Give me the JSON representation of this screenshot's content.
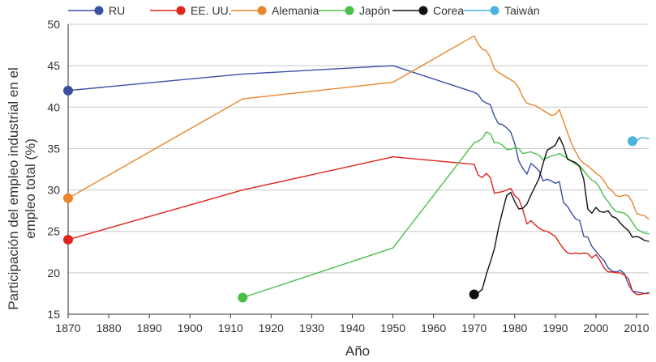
{
  "chart_data": {
    "type": "line",
    "title": "",
    "xlabel": "Año",
    "ylabel": "Participación del empleo industrial en el empleo total (%)",
    "ylabel_lines": [
      "Participación del empleo industrial en el",
      "empleo total (%)"
    ],
    "xlim": [
      1870,
      2013
    ],
    "ylim": [
      15,
      50
    ],
    "x_ticks": [
      1870,
      1880,
      1890,
      1900,
      1910,
      1920,
      1930,
      1940,
      1950,
      1960,
      1970,
      1980,
      1990,
      2000,
      2010
    ],
    "y_ticks": [
      15,
      20,
      25,
      30,
      35,
      40,
      45,
      50
    ],
    "grid": true,
    "legend_position": "top",
    "series": [
      {
        "name": "RU",
        "color": "#3b4fa0",
        "start_marker": true,
        "points": [
          [
            1870,
            42
          ],
          [
            1913,
            44
          ],
          [
            1950,
            45
          ],
          [
            1970,
            41.8
          ],
          [
            1971,
            41.5
          ],
          [
            1972,
            40.8
          ],
          [
            1973,
            40.5
          ],
          [
            1974,
            40.3
          ],
          [
            1975,
            38.9
          ],
          [
            1976,
            38
          ],
          [
            1977,
            37.9
          ],
          [
            1978,
            37.5
          ],
          [
            1979,
            37
          ],
          [
            1980,
            35.6
          ],
          [
            1981,
            33.5
          ],
          [
            1982,
            32.6
          ],
          [
            1983,
            31.9
          ],
          [
            1984,
            33.2
          ],
          [
            1985,
            32.8
          ],
          [
            1986,
            32.3
          ],
          [
            1987,
            31.1
          ],
          [
            1988,
            31.3
          ],
          [
            1989,
            31.1
          ],
          [
            1990,
            30.8
          ],
          [
            1991,
            31
          ],
          [
            1992,
            28.5
          ],
          [
            1993,
            28
          ],
          [
            1994,
            27.2
          ],
          [
            1995,
            26.5
          ],
          [
            1996,
            26.3
          ],
          [
            1997,
            24.4
          ],
          [
            1998,
            24.3
          ],
          [
            1999,
            23.2
          ],
          [
            2000,
            22.6
          ],
          [
            2001,
            22
          ],
          [
            2002,
            21.5
          ],
          [
            2003,
            20.6
          ],
          [
            2004,
            20.2
          ],
          [
            2005,
            20.1
          ],
          [
            2006,
            20.3
          ],
          [
            2007,
            19.9
          ],
          [
            2008,
            18.6
          ],
          [
            2009,
            17.8
          ],
          [
            2010,
            17.7
          ],
          [
            2011,
            17.6
          ],
          [
            2012,
            17.5
          ],
          [
            2013,
            17.6
          ]
        ]
      },
      {
        "name": "EE. UU.",
        "color": "#e0231b",
        "start_marker": true,
        "points": [
          [
            1870,
            24
          ],
          [
            1913,
            30
          ],
          [
            1950,
            34
          ],
          [
            1970,
            33.1
          ],
          [
            1971,
            31.8
          ],
          [
            1972,
            31.5
          ],
          [
            1973,
            32
          ],
          [
            1974,
            31.5
          ],
          [
            1975,
            29.6
          ],
          [
            1976,
            29.7
          ],
          [
            1977,
            29.8
          ],
          [
            1978,
            30
          ],
          [
            1979,
            30.2
          ],
          [
            1980,
            29.3
          ],
          [
            1981,
            28.9
          ],
          [
            1982,
            27.6
          ],
          [
            1983,
            25.9
          ],
          [
            1984,
            26.3
          ],
          [
            1985,
            25.8
          ],
          [
            1986,
            25.4
          ],
          [
            1987,
            25.1
          ],
          [
            1988,
            25
          ],
          [
            1989,
            24.7
          ],
          [
            1990,
            24.4
          ],
          [
            1991,
            23.6
          ],
          [
            1992,
            22.9
          ],
          [
            1993,
            22.4
          ],
          [
            1994,
            22.3
          ],
          [
            1995,
            22.4
          ],
          [
            1996,
            22.3
          ],
          [
            1997,
            22.4
          ],
          [
            1998,
            22.3
          ],
          [
            1999,
            21.8
          ],
          [
            2000,
            22.2
          ],
          [
            2001,
            21.5
          ],
          [
            2002,
            20.6
          ],
          [
            2003,
            20.1
          ],
          [
            2004,
            20.1
          ],
          [
            2005,
            20
          ],
          [
            2006,
            20
          ],
          [
            2007,
            19.7
          ],
          [
            2008,
            19.3
          ],
          [
            2009,
            17.8
          ],
          [
            2010,
            17.4
          ],
          [
            2011,
            17.4
          ],
          [
            2012,
            17.5
          ],
          [
            2013,
            17.5
          ]
        ]
      },
      {
        "name": "Alemania",
        "color": "#e8862b",
        "start_marker": true,
        "points": [
          [
            1870,
            29
          ],
          [
            1913,
            41
          ],
          [
            1950,
            43
          ],
          [
            1970,
            48.6
          ],
          [
            1971,
            47.6
          ],
          [
            1972,
            47
          ],
          [
            1973,
            46.8
          ],
          [
            1974,
            46
          ],
          [
            1975,
            44.6
          ],
          [
            1976,
            44.2
          ],
          [
            1977,
            43.9
          ],
          [
            1978,
            43.6
          ],
          [
            1979,
            43.3
          ],
          [
            1980,
            43
          ],
          [
            1981,
            42.3
          ],
          [
            1982,
            41.2
          ],
          [
            1983,
            40.5
          ],
          [
            1984,
            40.3
          ],
          [
            1985,
            40.2
          ],
          [
            1986,
            39.9
          ],
          [
            1987,
            39.6
          ],
          [
            1988,
            39.3
          ],
          [
            1989,
            39
          ],
          [
            1990,
            39.1
          ],
          [
            1991,
            39.7
          ],
          [
            1992,
            38.3
          ],
          [
            1993,
            36.9
          ],
          [
            1994,
            35.6
          ],
          [
            1995,
            34.6
          ],
          [
            1996,
            33.7
          ],
          [
            1997,
            33.2
          ],
          [
            1998,
            32.9
          ],
          [
            1999,
            32.5
          ],
          [
            2000,
            32
          ],
          [
            2001,
            31.7
          ],
          [
            2002,
            31.1
          ],
          [
            2003,
            30.3
          ],
          [
            2004,
            29.9
          ],
          [
            2005,
            29.3
          ],
          [
            2006,
            29.2
          ],
          [
            2007,
            29.4
          ],
          [
            2008,
            29.3
          ],
          [
            2009,
            28.5
          ],
          [
            2010,
            27.2
          ],
          [
            2011,
            27
          ],
          [
            2012,
            26.9
          ],
          [
            2013,
            26.5
          ]
        ]
      },
      {
        "name": "Japón",
        "color": "#4cbf4a",
        "start_marker": true,
        "points": [
          [
            1913,
            17
          ],
          [
            1950,
            23
          ],
          [
            1970,
            35.7
          ],
          [
            1971,
            35.9
          ],
          [
            1972,
            36.2
          ],
          [
            1973,
            37
          ],
          [
            1974,
            36.8
          ],
          [
            1975,
            35.7
          ],
          [
            1976,
            35.7
          ],
          [
            1977,
            35.4
          ],
          [
            1978,
            34.9
          ],
          [
            1979,
            34.9
          ],
          [
            1980,
            35.1
          ],
          [
            1981,
            35
          ],
          [
            1982,
            34.4
          ],
          [
            1983,
            34.5
          ],
          [
            1984,
            34.6
          ],
          [
            1985,
            34.4
          ],
          [
            1986,
            34.2
          ],
          [
            1987,
            33.6
          ],
          [
            1988,
            33.9
          ],
          [
            1989,
            34.1
          ],
          [
            1990,
            34.2
          ],
          [
            1991,
            34.4
          ],
          [
            1992,
            34.1
          ],
          [
            1993,
            33.8
          ],
          [
            1994,
            33.5
          ],
          [
            1995,
            33.1
          ],
          [
            1996,
            32.9
          ],
          [
            1997,
            32.3
          ],
          [
            1998,
            31.7
          ],
          [
            1999,
            31.2
          ],
          [
            2000,
            30.9
          ],
          [
            2001,
            30.2
          ],
          [
            2002,
            29.2
          ],
          [
            2003,
            28.6
          ],
          [
            2004,
            27.9
          ],
          [
            2005,
            27.4
          ],
          [
            2006,
            27.3
          ],
          [
            2007,
            27.2
          ],
          [
            2008,
            26.8
          ],
          [
            2009,
            26.1
          ],
          [
            2010,
            25.3
          ],
          [
            2011,
            25
          ],
          [
            2012,
            24.8
          ],
          [
            2013,
            24.7
          ]
        ]
      },
      {
        "name": "Corea",
        "color": "#111111",
        "start_marker": true,
        "points": [
          [
            1970,
            17.4
          ],
          [
            1971,
            17.6
          ],
          [
            1972,
            18
          ],
          [
            1973,
            19.8
          ],
          [
            1974,
            21.3
          ],
          [
            1975,
            22.9
          ],
          [
            1976,
            25.4
          ],
          [
            1977,
            27.4
          ],
          [
            1978,
            29.3
          ],
          [
            1979,
            29.7
          ],
          [
            1980,
            28.6
          ],
          [
            1981,
            27.7
          ],
          [
            1982,
            27.8
          ],
          [
            1983,
            28.3
          ],
          [
            1984,
            29.4
          ],
          [
            1985,
            30.4
          ],
          [
            1986,
            31.4
          ],
          [
            1987,
            33.2
          ],
          [
            1988,
            34.8
          ],
          [
            1989,
            35.1
          ],
          [
            1990,
            35.4
          ],
          [
            1991,
            36.4
          ],
          [
            1992,
            35.3
          ],
          [
            1993,
            33.7
          ],
          [
            1994,
            33.5
          ],
          [
            1995,
            33.3
          ],
          [
            1996,
            32.8
          ],
          [
            1997,
            31.3
          ],
          [
            1998,
            27.7
          ],
          [
            1999,
            27.2
          ],
          [
            2000,
            27.9
          ],
          [
            2001,
            27.4
          ],
          [
            2002,
            27.3
          ],
          [
            2003,
            27.5
          ],
          [
            2004,
            26.8
          ],
          [
            2005,
            26.6
          ],
          [
            2006,
            26
          ],
          [
            2007,
            25.5
          ],
          [
            2008,
            25.1
          ],
          [
            2009,
            24.3
          ],
          [
            2010,
            24.4
          ],
          [
            2011,
            24.2
          ],
          [
            2012,
            23.9
          ],
          [
            2013,
            23.8
          ]
        ]
      },
      {
        "name": "Taiwán",
        "color": "#4ab3e0",
        "start_marker": true,
        "points": [
          [
            2009,
            35.9
          ],
          [
            2010,
            35.9
          ],
          [
            2011,
            36.3
          ],
          [
            2012,
            36.3
          ],
          [
            2013,
            36.2
          ]
        ]
      }
    ]
  }
}
